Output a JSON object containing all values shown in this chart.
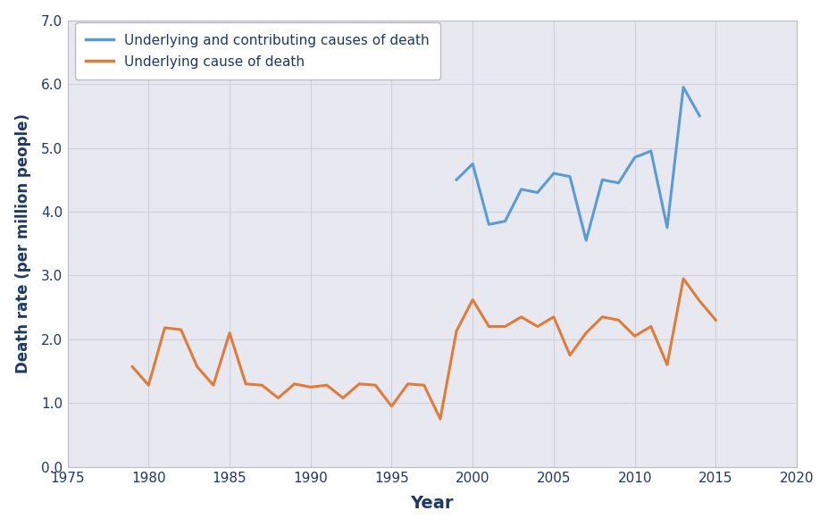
{
  "underlying_contributing": {
    "years": [
      1999,
      2000,
      2001,
      2002,
      2003,
      2004,
      2005,
      2006,
      2007,
      2008,
      2009,
      2010,
      2011,
      2012,
      2013,
      2014,
      2015,
      2016
    ],
    "values": [
      4.5,
      4.75,
      3.8,
      3.85,
      4.35,
      4.3,
      4.6,
      4.55,
      3.55,
      4.5,
      4.45,
      4.85,
      4.95,
      3.75,
      5.95,
      5.5,
      null,
      null
    ]
  },
  "underlying": {
    "years": [
      1979,
      1980,
      1981,
      1982,
      1983,
      1984,
      1985,
      1986,
      1987,
      1988,
      1989,
      1990,
      1991,
      1992,
      1993,
      1994,
      1995,
      1996,
      1997,
      1998,
      1999,
      2000,
      2001,
      2002,
      2003,
      2004,
      2005,
      2006,
      2007,
      2008,
      2009,
      2010,
      2011,
      2012,
      2013,
      2014,
      2015,
      2016
    ],
    "values": [
      1.57,
      1.28,
      2.18,
      2.15,
      1.57,
      1.28,
      2.1,
      1.3,
      1.28,
      1.08,
      1.3,
      1.25,
      1.28,
      1.08,
      1.3,
      1.28,
      0.95,
      1.3,
      1.28,
      0.75,
      2.13,
      2.62,
      2.2,
      2.2,
      2.35,
      2.2,
      2.35,
      1.75,
      2.1,
      2.35,
      2.3,
      2.05,
      2.2,
      1.6,
      2.95,
      2.6,
      2.3,
      null
    ]
  },
  "blue_color": "#5B9BD5",
  "orange_color": "#E07B39",
  "plot_bg_color": "#E8E8F0",
  "figure_bg_color": "#FFFFFF",
  "grid_color": "#D0D0DC",
  "text_color": "#1F3864",
  "xlabel": "Year",
  "ylabel": "Death rate (per million people)",
  "legend_label_blue": "Underlying and contributing causes of death",
  "legend_label_orange": "Underlying cause of death",
  "xlim": [
    1975,
    2020
  ],
  "ylim": [
    0.0,
    7.0
  ],
  "xticks": [
    1975,
    1980,
    1985,
    1990,
    1995,
    2000,
    2005,
    2010,
    2015,
    2020
  ],
  "yticks": [
    0.0,
    1.0,
    2.0,
    3.0,
    4.0,
    5.0,
    6.0,
    7.0
  ]
}
